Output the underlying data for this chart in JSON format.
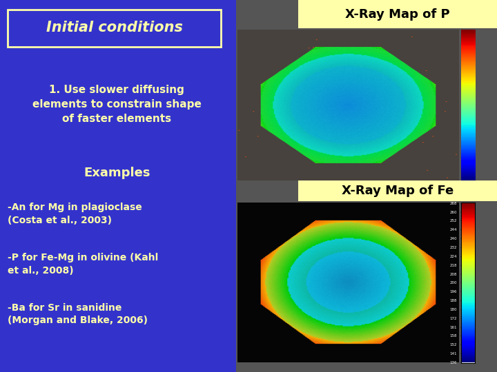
{
  "bg_color": "#3333cc",
  "title_box_text": "Initial conditions",
  "title_box_bg": "#3333cc",
  "title_box_border": "#ffffaa",
  "title_text_color": "#ffffaa",
  "body_text_color": "#ffffaa",
  "point1_text": "1. Use slower diffusing\nelements to constrain shape\nof faster elements",
  "examples_text": "Examples",
  "bullet1": "-An for Mg in plagioclase\n(Costa et al., 2003)",
  "bullet2": "-P for Fe-Mg in olivine (Kahl\net al., 2008)",
  "bullet3": "-Ba for Sr in sanidine\n(Morgan and Blake, 2006)",
  "xray_p_label": "X-Ray Map of P",
  "xray_fe_label": "X-Ray Map of Fe",
  "xray_label_bg": "#ffffaa",
  "xray_label_color": "#000000",
  "right_panel_bg": "#555555"
}
